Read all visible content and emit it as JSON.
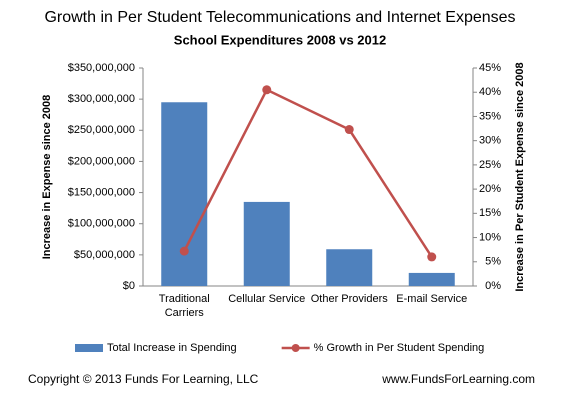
{
  "chart_data": {
    "type": "bar",
    "title": "Growth in Per Student Telecommunications and Internet Expenses",
    "subtitle": "School Expenditures 2008 vs 2012",
    "categories": [
      "Traditional Carriers",
      "Cellular Service",
      "Other Providers",
      "E-mail Service"
    ],
    "series": [
      {
        "name": "Total Increase in Spending",
        "color": "#4f81bd",
        "values": [
          295000000,
          135000000,
          59000000,
          21000000
        ]
      },
      {
        "name": "% Growth in Per Student Spending",
        "color": "#c0504d",
        "type": "line",
        "axis": "y2",
        "values": [
          7.2,
          40.5,
          32.3,
          6
        ]
      }
    ],
    "ylabel": "Increase in Expense since 2008",
    "y2label": "Increase in Per Student Expense since 2008",
    "ylim": [
      0,
      350000000
    ],
    "yticks": [
      {
        "value": 0,
        "label": "$0"
      },
      {
        "value": 50000000,
        "label": "$50,000,000"
      },
      {
        "value": 100000000,
        "label": "$100,000,000"
      },
      {
        "value": 150000000,
        "label": "$150,000,000"
      },
      {
        "value": 200000000,
        "label": "$200,000,000"
      },
      {
        "value": 250000000,
        "label": "$250,000,000"
      },
      {
        "value": 300000000,
        "label": "$300,000,000"
      },
      {
        "value": 350000000,
        "label": "$350,000,000"
      }
    ],
    "y2lim": [
      0,
      45
    ],
    "y2ticks": [
      {
        "value": 0,
        "label": "0%"
      },
      {
        "value": 5,
        "label": "5%"
      },
      {
        "value": 10,
        "label": "10%"
      },
      {
        "value": 15,
        "label": "15%"
      },
      {
        "value": 20,
        "label": "20%"
      },
      {
        "value": 25,
        "label": "25%"
      },
      {
        "value": 30,
        "label": "30%"
      },
      {
        "value": 35,
        "label": "35%"
      },
      {
        "value": 40,
        "label": "40%"
      },
      {
        "value": 45,
        "label": "45%"
      }
    ],
    "grid": false,
    "legend": "bottom",
    "annotations": [
      "Copyright © 2013 Funds For Learning, LLC",
      "www.FundsForLearning.com"
    ]
  }
}
